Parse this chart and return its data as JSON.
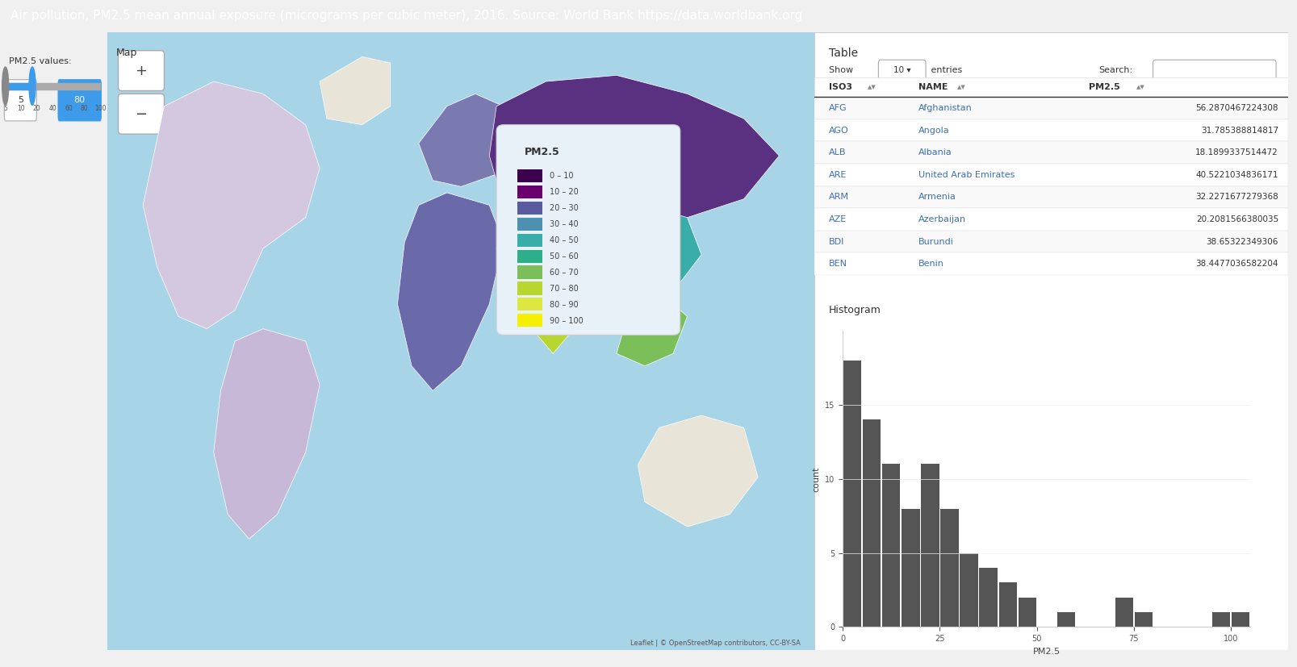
{
  "title": "Air pollution, PM2.5 mean annual exposure (micrograms per cubic meter), 2016. Source: World Bank https://data.worldbank.org",
  "header_bg": "#3d9be9",
  "header_text_color": "#ffffff",
  "header_fontsize": 11,
  "page_bg": "#f0f0f0",
  "left_panel_bg": "#d6e8f5",
  "map_bg": "#87CEEB",
  "slider_label": "PM2.5 values:",
  "slider_min": 5,
  "slider_max": 80,
  "map_title": "Map",
  "map_title_color": "#333333",
  "legend_title": "PM2.5",
  "legend_bins": [
    "0 – 10",
    "10 – 20",
    "20 – 30",
    "30 – 40",
    "40 – 50",
    "50 – 60",
    "60 – 70",
    "70 – 80",
    "80 – 90",
    "90 – 100"
  ],
  "legend_colors": [
    "#3d004d",
    "#6a0070",
    "#5a5a9f",
    "#4d90b0",
    "#3aada8",
    "#2db08a",
    "#7bbf5a",
    "#b8d630",
    "#dce840",
    "#f5f000"
  ],
  "table_title": "Table",
  "table_show_label": "Show",
  "table_entries": "10",
  "table_search_label": "Search:",
  "table_headers": [
    "ISO3",
    "NAME",
    "PM2.5"
  ],
  "table_rows": [
    [
      "AFG",
      "Afghanistan",
      "56.2870467224308"
    ],
    [
      "AGO",
      "Angola",
      "31.785388814817"
    ],
    [
      "ALB",
      "Albania",
      "18.1899337514472"
    ],
    [
      "ARE",
      "United Arab Emirates",
      "40.5221034836171"
    ],
    [
      "ARM",
      "Armenia",
      "32.2271677279368"
    ],
    [
      "AZE",
      "Azerbaijan",
      "20.2081566380035"
    ],
    [
      "BDI",
      "Burundi",
      "38.65322349306"
    ],
    [
      "BEN",
      "Benin",
      "38.4477036582204"
    ]
  ],
  "table_row_alt_bg": "#f9f9f9",
  "table_row_bg": "#ffffff",
  "table_header_bg": "#ffffff",
  "table_border_color": "#dddddd",
  "table_link_color": "#3d6eb5",
  "hist_title": "Histogram",
  "hist_xlabel": "PM2.5",
  "hist_ylabel": "count",
  "hist_bar_color": "#555555",
  "hist_bar_heights": [
    18,
    14,
    11,
    8,
    11,
    8,
    5,
    4,
    3,
    2,
    0,
    1,
    0,
    0,
    2,
    1,
    0,
    0,
    0,
    1,
    1
  ],
  "hist_bar_edges": [
    0,
    5,
    10,
    15,
    20,
    25,
    30,
    35,
    40,
    45,
    50,
    55,
    60,
    65,
    70,
    75,
    80,
    85,
    90,
    95,
    100,
    105
  ],
  "hist_xlim": [
    0,
    105
  ],
  "hist_ylim": [
    0,
    20
  ],
  "hist_xticks": [
    0,
    25,
    50,
    75,
    100
  ],
  "hist_yticks": [
    0,
    5,
    10,
    15
  ],
  "hist_bg": "#ffffff",
  "panel_border_color": "#cccccc",
  "zoom_plus_label": "+",
  "zoom_minus_label": "−"
}
